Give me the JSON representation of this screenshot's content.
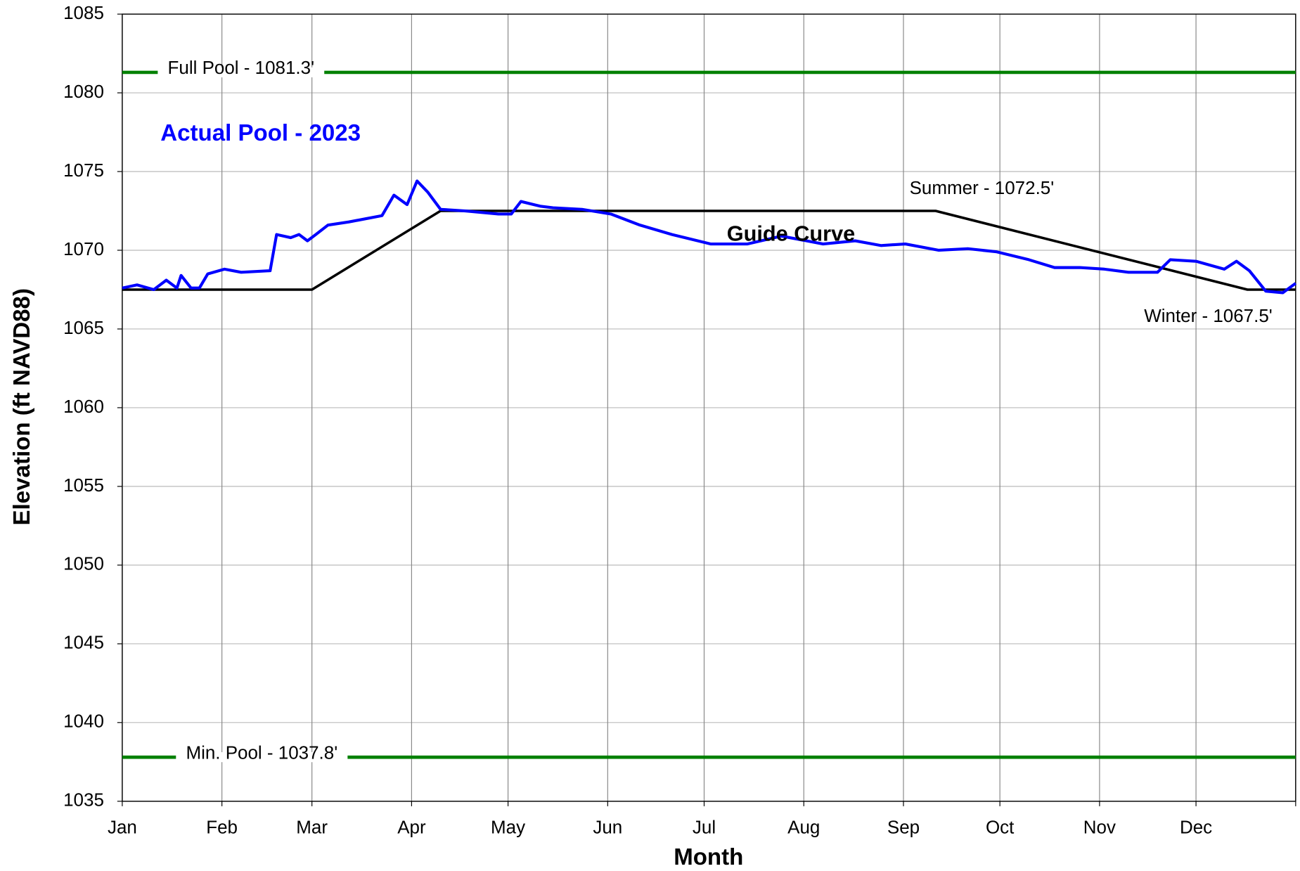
{
  "chart_data": {
    "type": "line",
    "xlabel": "Month",
    "ylabel": "Elevation (ft NAVD88)",
    "xlim": [
      0,
      365
    ],
    "xticks": [
      {
        "value": 0,
        "label": "Jan"
      },
      {
        "value": 31,
        "label": "Feb"
      },
      {
        "value": 59,
        "label": "Mar"
      },
      {
        "value": 90,
        "label": "Apr"
      },
      {
        "value": 120,
        "label": "May"
      },
      {
        "value": 151,
        "label": "Jun"
      },
      {
        "value": 181,
        "label": "Jul"
      },
      {
        "value": 212,
        "label": "Aug"
      },
      {
        "value": 243,
        "label": "Sep"
      },
      {
        "value": 273,
        "label": "Oct"
      },
      {
        "value": 304,
        "label": "Nov"
      },
      {
        "value": 334,
        "label": "Dec"
      },
      {
        "value": 365,
        "label": ""
      }
    ],
    "ylim": [
      1035,
      1085
    ],
    "yticks": [
      1035,
      1040,
      1045,
      1050,
      1055,
      1060,
      1065,
      1070,
      1075,
      1080,
      1085
    ],
    "grid": true,
    "series": [
      {
        "name": "Actual Pool - 2023",
        "color": "#0000ff",
        "x": [
          0,
          4.6,
          9.8,
          13.7,
          17,
          18.3,
          21.4,
          24,
          26.6,
          31.8,
          37,
          46,
          48,
          52.4,
          55,
          57.6,
          60.2,
          64,
          70.5,
          75.7,
          80.8,
          84.5,
          88.6,
          91.7,
          95,
          99,
          106.7,
          117,
          121,
          124,
          130,
          134,
          143,
          152,
          161,
          171,
          183,
          194.5,
          205,
          218,
          228,
          236,
          243.6,
          254,
          263,
          272,
          282,
          290,
          297.8,
          305.5,
          313,
          322,
          326,
          334,
          342.8,
          346.6,
          350.6,
          355.7,
          361,
          365
        ],
        "values": [
          1067.6,
          1067.8,
          1067.5,
          1068.1,
          1067.6,
          1068.4,
          1067.6,
          1067.6,
          1068.5,
          1068.8,
          1068.6,
          1068.7,
          1071.0,
          1070.8,
          1071.0,
          1070.6,
          1071.0,
          1071.6,
          1071.8,
          1072.0,
          1072.2,
          1073.5,
          1072.9,
          1074.4,
          1073.7,
          1072.6,
          1072.5,
          1072.3,
          1072.3,
          1073.1,
          1072.8,
          1072.7,
          1072.6,
          1072.3,
          1071.6,
          1071.0,
          1070.4,
          1070.4,
          1070.9,
          1070.4,
          1070.6,
          1070.3,
          1070.4,
          1070.0,
          1070.1,
          1069.9,
          1069.4,
          1068.9,
          1068.9,
          1068.8,
          1068.6,
          1068.6,
          1069.4,
          1069.3,
          1068.8,
          1069.3,
          1068.7,
          1067.4,
          1067.3,
          1067.9
        ]
      },
      {
        "name": "Guide Curve",
        "color": "#000000",
        "x": [
          0,
          59,
          99,
          253,
          350,
          365
        ],
        "values": [
          1067.5,
          1067.5,
          1072.5,
          1072.5,
          1067.5,
          1067.5
        ]
      }
    ],
    "reference_lines": [
      {
        "label": "Full Pool - 1081.3'",
        "value": 1081.3,
        "color": "#008000"
      },
      {
        "label": "Min. Pool - 1037.8'",
        "value": 1037.8,
        "color": "#008000"
      }
    ],
    "annotations": [
      "Summer - 1072.5'",
      "Winter - 1067.5'"
    ]
  }
}
